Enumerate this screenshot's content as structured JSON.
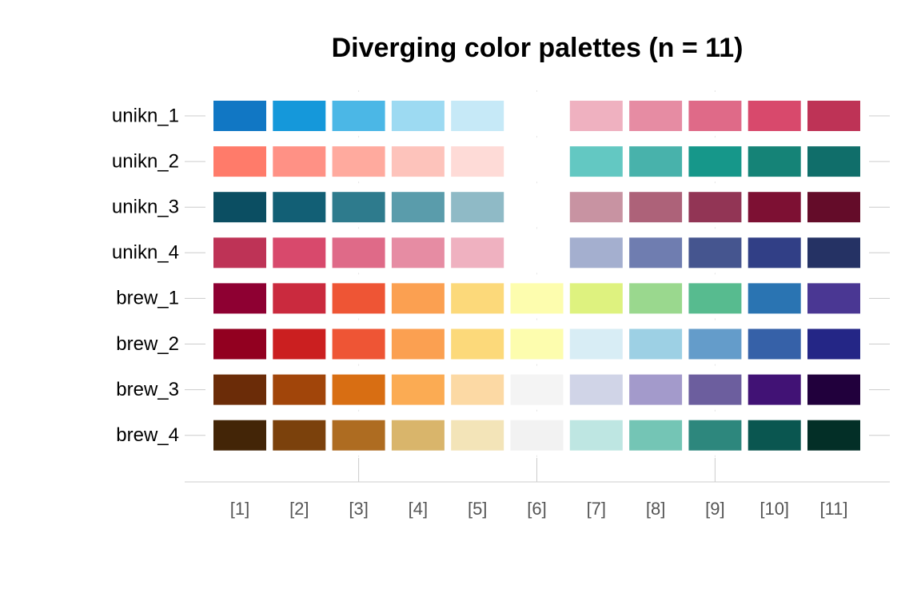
{
  "chart_data": {
    "type": "palette",
    "title": "Diverging color palettes (n = 11)",
    "columns": [
      "[1]",
      "[2]",
      "[3]",
      "[4]",
      "[5]",
      "[6]",
      "[7]",
      "[8]",
      "[9]",
      "[10]",
      "[11]"
    ],
    "rows": [
      {
        "name": "unikn_1",
        "colors": [
          "#1177C4",
          "#1598DA",
          "#4BB7E6",
          "#9DDAF2",
          "#C6E9F7",
          null,
          "#EFB1C0",
          "#E68CA3",
          "#DF6A88",
          "#D8496C",
          "#BE3356"
        ]
      },
      {
        "name": "unikn_2",
        "colors": [
          "#FF7B6A",
          "#FF9185",
          "#FFAA9E",
          "#FDC3BB",
          "#FEDBD7",
          null,
          "#63C8C2",
          "#48B2AB",
          "#16978A",
          "#158377",
          "#106E6A"
        ]
      },
      {
        "name": "unikn_3",
        "colors": [
          "#0B4E62",
          "#125F75",
          "#2E7B8D",
          "#5A9CAB",
          "#8FBAC6",
          null,
          "#C893A2",
          "#AD6279",
          "#923555",
          "#7D1033",
          "#640C29"
        ]
      },
      {
        "name": "unikn_4",
        "colors": [
          "#BE3356",
          "#D8496C",
          "#DF6A88",
          "#E68CA3",
          "#EFB1C0",
          null,
          "#A4AFCF",
          "#6F7DB0",
          "#45558F",
          "#313F86",
          "#253264"
        ]
      },
      {
        "name": "brew_1",
        "colors": [
          "#8E0032",
          "#CA2A3E",
          "#EE5535",
          "#FBA051",
          "#FCD97A",
          "#FDFDAE",
          "#DEF27F",
          "#9AD88E",
          "#57BB8F",
          "#2A74B2",
          "#4A3793"
        ]
      },
      {
        "name": "brew_2",
        "colors": [
          "#920020",
          "#CB1F20",
          "#EE5535",
          "#FBA051",
          "#FCD97A",
          "#FDFDAE",
          "#D8EDF5",
          "#9DD0E4",
          "#649CCA",
          "#3661A8",
          "#242686"
        ]
      },
      {
        "name": "brew_3",
        "colors": [
          "#6B2C08",
          "#A1450A",
          "#D86E13",
          "#FBAB53",
          "#FCD9A4",
          "#F4F4F4",
          "#D0D4E7",
          "#A39ACB",
          "#6C5E9E",
          "#411275",
          "#21003C"
        ]
      },
      {
        "name": "brew_4",
        "colors": [
          "#432507",
          "#7B410C",
          "#AE6C21",
          "#D9B56B",
          "#F3E4B8",
          "#F2F2F2",
          "#BEE6E2",
          "#74C5B5",
          "#2D877D",
          "#0A5650",
          "#032F27"
        ]
      }
    ]
  }
}
